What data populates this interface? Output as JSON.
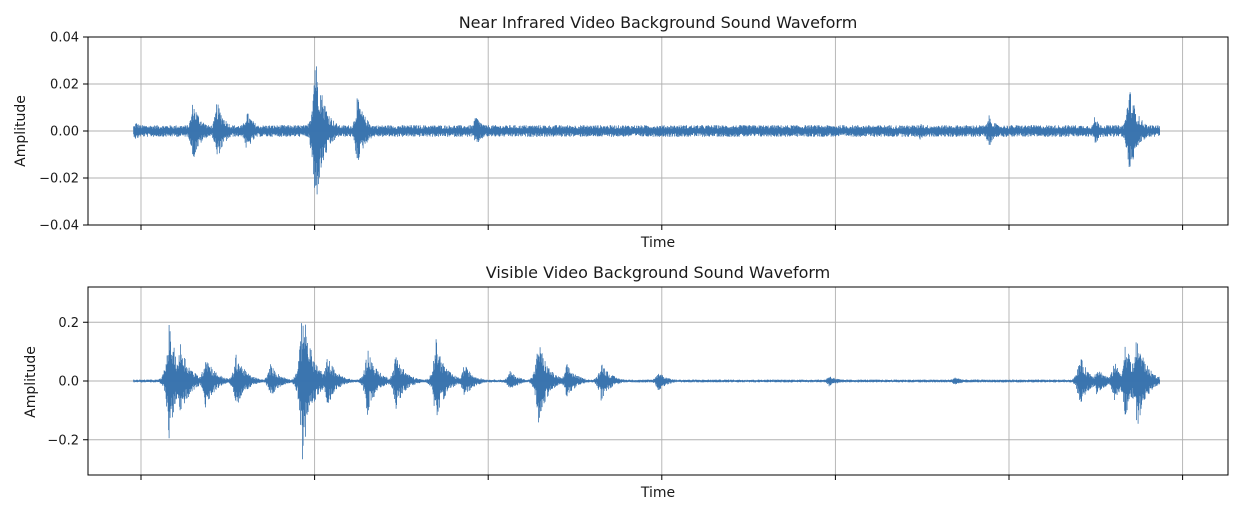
{
  "chart_data": [
    {
      "type": "line",
      "title": "Near Infrared Video Background Sound Waveform",
      "xlabel": "Time",
      "ylabel": "Amplitude",
      "ylim": [
        -0.04,
        0.04
      ],
      "yticks": [
        0.04,
        0.02,
        0.0,
        -0.02,
        -0.04
      ],
      "ytick_labels": [
        "0.04",
        "0.02",
        "0.00",
        "−0.02",
        "−0.04"
      ],
      "xtick_count": 7,
      "grid": true,
      "color": "#3b75af",
      "series": [
        {
          "name": "waveform",
          "noise_floor": 0.0025,
          "envelope": [
            {
              "t": 0.042,
              "amp": 0.004
            },
            {
              "t": 0.092,
              "amp": 0.013
            },
            {
              "t": 0.113,
              "amp": 0.013
            },
            {
              "t": 0.139,
              "amp": 0.009
            },
            {
              "t": 0.199,
              "amp": 0.036
            },
            {
              "t": 0.236,
              "amp": 0.015
            },
            {
              "t": 0.34,
              "amp": 0.007
            },
            {
              "t": 0.73,
              "amp": 0.004
            },
            {
              "t": 0.79,
              "amp": 0.007
            },
            {
              "t": 0.883,
              "amp": 0.006
            },
            {
              "t": 0.913,
              "amp": 0.02
            }
          ],
          "t_range": [
            0.04,
            0.94
          ]
        }
      ]
    },
    {
      "type": "line",
      "title": "Visible Video Background Sound Waveform",
      "xlabel": "Time",
      "ylabel": "Amplitude",
      "ylim": [
        -0.32,
        0.32
      ],
      "yticks": [
        0.2,
        0.0,
        -0.2
      ],
      "ytick_labels": [
        "0.2",
        "0.0",
        "−0.2"
      ],
      "xtick_count": 7,
      "grid": true,
      "color": "#3b75af",
      "series": [
        {
          "name": "waveform",
          "noise_floor": 0.005,
          "envelope": [
            {
              "t": 0.071,
              "amp": 0.2
            },
            {
              "t": 0.081,
              "amp": 0.14
            },
            {
              "t": 0.103,
              "amp": 0.1
            },
            {
              "t": 0.13,
              "amp": 0.1
            },
            {
              "t": 0.16,
              "amp": 0.06
            },
            {
              "t": 0.188,
              "amp": 0.28
            },
            {
              "t": 0.21,
              "amp": 0.09
            },
            {
              "t": 0.245,
              "amp": 0.12
            },
            {
              "t": 0.27,
              "amp": 0.1
            },
            {
              "t": 0.305,
              "amp": 0.15
            },
            {
              "t": 0.33,
              "amp": 0.06
            },
            {
              "t": 0.37,
              "amp": 0.035
            },
            {
              "t": 0.395,
              "amp": 0.15
            },
            {
              "t": 0.42,
              "amp": 0.06
            },
            {
              "t": 0.45,
              "amp": 0.07
            },
            {
              "t": 0.5,
              "amp": 0.035
            },
            {
              "t": 0.65,
              "amp": 0.02
            },
            {
              "t": 0.76,
              "amp": 0.015
            },
            {
              "t": 0.87,
              "amp": 0.09
            },
            {
              "t": 0.885,
              "amp": 0.05
            },
            {
              "t": 0.9,
              "amp": 0.07
            },
            {
              "t": 0.91,
              "amp": 0.14
            },
            {
              "t": 0.92,
              "amp": 0.17
            },
            {
              "t": 0.935,
              "amp": 0.02
            }
          ],
          "t_range": [
            0.04,
            0.94
          ]
        }
      ]
    }
  ]
}
